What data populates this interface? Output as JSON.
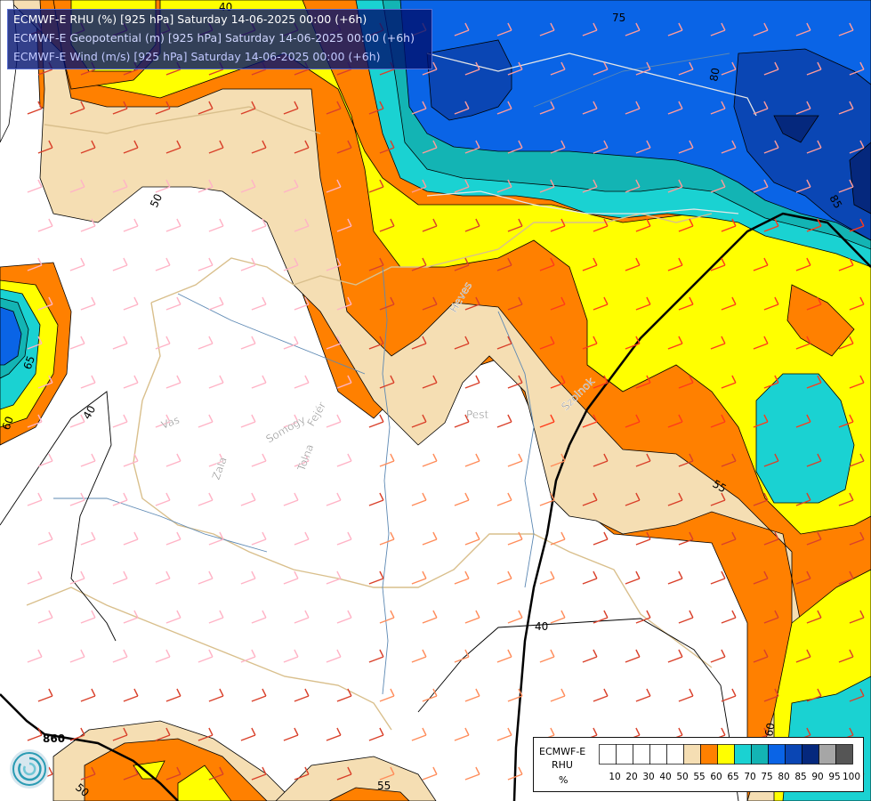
{
  "title": {
    "line1": "ECMWF-E RHU (%) [925 hPa] Saturday 14-06-2025 00:00 (+6h)",
    "line2": "ECMWF-E Geopotential (m) [925 hPa] Saturday 14-06-2025 00:00 (+6h)",
    "line3": "ECMWF-E Wind (m/s) [925 hPa] Saturday 14-06-2025 00:00 (+6h)"
  },
  "legend": {
    "model": "ECMWF-E",
    "variable": "RHU",
    "unit": "%",
    "levels": [
      "10",
      "20",
      "30",
      "40",
      "50",
      "55",
      "60",
      "65",
      "70",
      "75",
      "80",
      "85",
      "90",
      "95",
      "100"
    ],
    "colors": [
      "#ffffff",
      "#ffffff",
      "#ffffff",
      "#ffffff",
      "#ffffff",
      "#f5deb3",
      "#ff8000",
      "#ffff00",
      "#1ad2d2",
      "#13b4b4",
      "#0a64e6",
      "#0a46b4",
      "#05287d",
      "#a6a6a6",
      "#555555"
    ]
  },
  "contour_labels": {
    "c75": "75",
    "c80": "80",
    "c85": "85",
    "c50a": "50",
    "c65": "65",
    "c40a": "40",
    "c60a": "60",
    "c55a": "55",
    "c40b": "40",
    "c60b": "60",
    "c55b": "55",
    "c50b": "50",
    "c40c": "40"
  },
  "geopotential_label": "860",
  "region_labels": {
    "vas": "Vas",
    "zala": "Zala",
    "somogy": "Somogy",
    "fejer": "Fejér",
    "tolna": "Tolna",
    "pest": "Pest",
    "heves": "Heves",
    "szolnok": "Szolnok"
  },
  "colors": {
    "orange": "#ff8000",
    "tan": "#f5deb3",
    "yellow": "#ffff00",
    "cyan": "#1ad2d2",
    "teal": "#13b4b4",
    "blue": "#0a64e6",
    "darkblue": "#0a46b4",
    "navy": "#05287d"
  },
  "logo_icon": "ecmwf-logo-icon"
}
